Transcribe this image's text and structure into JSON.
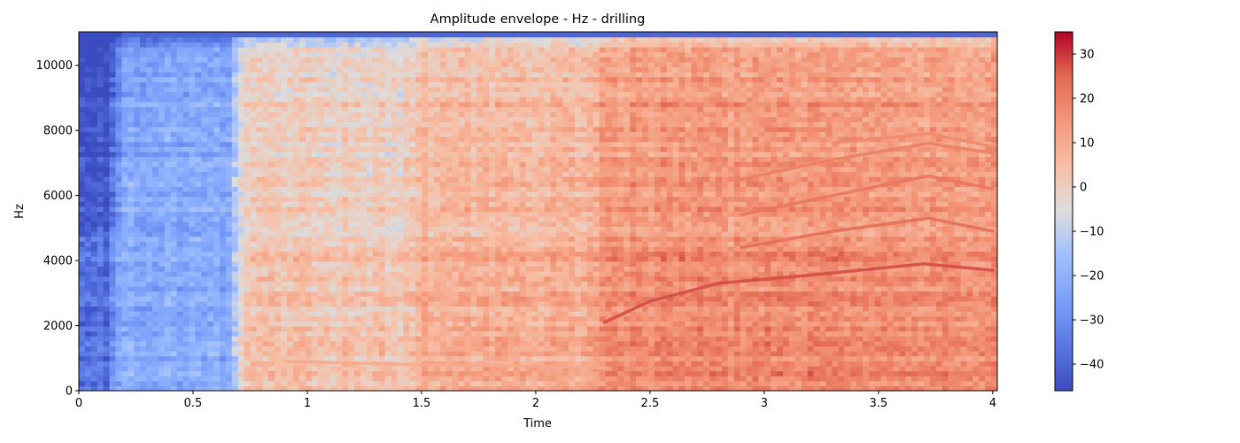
{
  "chart_data": {
    "type": "heatmap",
    "title": "Amplitude envelope - Hz - drilling",
    "xlabel": "Time",
    "ylabel": "Hz",
    "xlim": [
      0,
      4.02
    ],
    "ylim": [
      0,
      11025
    ],
    "x_ticks": [
      0,
      0.5,
      1,
      1.5,
      2,
      2.5,
      3,
      3.5,
      4
    ],
    "x_tick_labels": [
      "0",
      "0.5",
      "1",
      "1.5",
      "2",
      "2.5",
      "3",
      "3.5",
      "4"
    ],
    "y_ticks": [
      0,
      2000,
      4000,
      6000,
      8000,
      10000
    ],
    "y_tick_labels": [
      "0",
      "2000",
      "4000",
      "6000",
      "8000",
      "10000"
    ],
    "colorbar": {
      "colormap": "coolwarm",
      "range": [
        -46,
        35
      ],
      "ticks": [
        -40,
        -30,
        -20,
        -10,
        0,
        10,
        20,
        30
      ],
      "tick_labels": [
        "−40",
        "−30",
        "−20",
        "−10",
        "0",
        "10",
        "20",
        "30"
      ]
    },
    "regions": [
      {
        "t_start": 0.0,
        "t_end": 0.18,
        "level_db": -38
      },
      {
        "t_start": 0.18,
        "t_end": 0.72,
        "level_db": -22
      },
      {
        "t_start": 0.72,
        "t_end": 1.5,
        "level_db": 0
      },
      {
        "t_start": 1.5,
        "t_end": 2.3,
        "level_db": 6
      },
      {
        "t_start": 2.3,
        "t_end": 4.02,
        "level_db": 14
      }
    ],
    "harmonic_tracks": [
      {
        "points": [
          [
            2.3,
            2100
          ],
          [
            2.5,
            2750
          ],
          [
            2.8,
            3300
          ],
          [
            3.2,
            3550
          ],
          [
            3.7,
            3900
          ],
          [
            4.0,
            3700
          ]
        ],
        "level_db": 28
      },
      {
        "points": [
          [
            2.9,
            4400
          ],
          [
            3.3,
            4900
          ],
          [
            3.72,
            5300
          ],
          [
            4.0,
            4900
          ]
        ],
        "level_db": 24
      },
      {
        "points": [
          [
            2.9,
            5400
          ],
          [
            3.3,
            6000
          ],
          [
            3.72,
            6600
          ],
          [
            4.0,
            6200
          ]
        ],
        "level_db": 22
      },
      {
        "points": [
          [
            2.9,
            6500
          ],
          [
            3.3,
            7100
          ],
          [
            3.72,
            7600
          ],
          [
            4.0,
            7300
          ]
        ],
        "level_db": 20
      },
      {
        "points": [
          [
            3.3,
            7600
          ],
          [
            3.72,
            7900
          ],
          [
            4.0,
            7500
          ]
        ],
        "level_db": 18
      },
      {
        "points": [
          [
            0.9,
            900
          ],
          [
            1.5,
            800
          ],
          [
            2.0,
            750
          ],
          [
            2.3,
            700
          ]
        ],
        "level_db": 10
      }
    ]
  }
}
